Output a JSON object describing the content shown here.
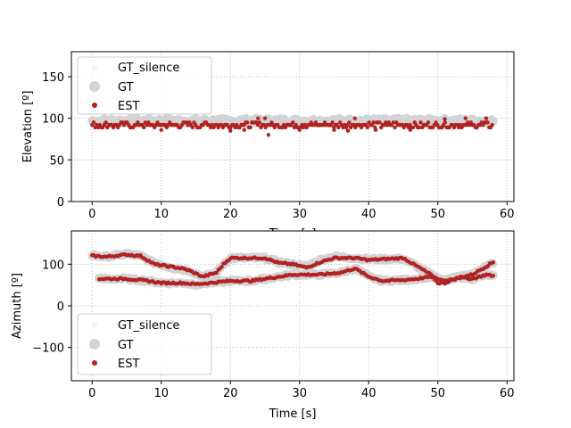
{
  "colors": {
    "gt_silence": "#f2f2f2",
    "gt": "#d3d3d3",
    "est": "#b22222",
    "grid": "#b0b0b0"
  },
  "chart_data": [
    {
      "type": "scatter",
      "xlabel": "Time [s]",
      "ylabel": "Elevation [º]",
      "xlim": [
        -3,
        61
      ],
      "ylim": [
        0,
        180
      ],
      "xticks": [
        "0",
        "10",
        "20",
        "30",
        "40",
        "50",
        "60"
      ],
      "yticks": [
        "0",
        "50",
        "100",
        "150"
      ],
      "grid": true,
      "legend_position": "upper-left",
      "series": [
        {
          "name": "GT_silence",
          "segments": []
        },
        {
          "name": "GT",
          "segments": [
            {
              "x_start": 0,
              "x_end": 58,
              "y": 97,
              "jitter": 3
            }
          ]
        },
        {
          "name": "EST",
          "segments": [
            {
              "x_start": 0,
              "x_end": 58,
              "y": 92,
              "jitter": 3
            }
          ],
          "points": [
            {
              "x": 10,
              "y": 86
            },
            {
              "x": 20,
              "y": 85
            },
            {
              "x": 22,
              "y": 86
            },
            {
              "x": 24,
              "y": 100
            },
            {
              "x": 25,
              "y": 100
            },
            {
              "x": 25.5,
              "y": 80
            },
            {
              "x": 30,
              "y": 86
            },
            {
              "x": 35,
              "y": 86
            },
            {
              "x": 37,
              "y": 85
            },
            {
              "x": 38,
              "y": 100
            },
            {
              "x": 41,
              "y": 86
            },
            {
              "x": 46,
              "y": 86
            },
            {
              "x": 51,
              "y": 99
            },
            {
              "x": 54,
              "y": 100
            },
            {
              "x": 57,
              "y": 100
            }
          ]
        }
      ]
    },
    {
      "type": "scatter",
      "xlabel": "Time [s]",
      "ylabel": "Azimuth [º]",
      "xlim": [
        -3,
        61
      ],
      "ylim": [
        -180,
        180
      ],
      "xticks": [
        "0",
        "10",
        "20",
        "30",
        "40",
        "50",
        "60"
      ],
      "yticks": [
        "−100",
        "0",
        "100"
      ],
      "grid": true,
      "legend_position": "lower-left",
      "series": [
        {
          "name": "GT_silence",
          "segments": []
        },
        {
          "name": "GT",
          "trajectories": [
            [
              [
                0,
                122
              ],
              [
                2,
                118
              ],
              [
                5,
                125
              ],
              [
                7,
                120
              ],
              [
                9,
                103
              ],
              [
                12,
                90
              ],
              [
                14,
                85
              ],
              [
                16,
                70
              ],
              [
                18,
                80
              ],
              [
                19,
                100
              ],
              [
                20,
                115
              ],
              [
                25,
                115
              ],
              [
                27,
                105
              ],
              [
                29,
                100
              ],
              [
                31,
                95
              ],
              [
                33,
                110
              ],
              [
                35,
                118
              ],
              [
                38,
                115
              ],
              [
                40,
                112
              ],
              [
                45,
                113
              ],
              [
                47,
                95
              ],
              [
                49,
                75
              ],
              [
                51,
                60
              ],
              [
                53,
                70
              ],
              [
                55,
                75
              ],
              [
                56,
                85
              ],
              [
                57,
                95
              ],
              [
                58,
                105
              ]
            ],
            [
              [
                1,
                65
              ],
              [
                5,
                65
              ],
              [
                8,
                60
              ],
              [
                10,
                55
              ],
              [
                13,
                55
              ],
              [
                15,
                52
              ],
              [
                17,
                55
              ],
              [
                20,
                60
              ],
              [
                23,
                60
              ],
              [
                25,
                65
              ],
              [
                27,
                70
              ],
              [
                29,
                75
              ],
              [
                33,
                75
              ],
              [
                36,
                80
              ],
              [
                38,
                90
              ],
              [
                40,
                70
              ],
              [
                42,
                60
              ],
              [
                45,
                62
              ],
              [
                47,
                65
              ],
              [
                49,
                70
              ],
              [
                51,
                60
              ],
              [
                53,
                70
              ],
              [
                55,
                65
              ],
              [
                57,
                75
              ],
              [
                58,
                72
              ]
            ]
          ]
        },
        {
          "name": "EST",
          "trajectories": [
            [
              [
                0,
                120
              ],
              [
                2,
                118
              ],
              [
                5,
                123
              ],
              [
                7,
                120
              ],
              [
                9,
                100
              ],
              [
                11,
                95
              ],
              [
                13,
                90
              ],
              [
                14,
                85
              ],
              [
                16,
                70
              ],
              [
                18,
                80
              ],
              [
                19,
                100
              ],
              [
                20,
                115
              ],
              [
                25,
                115
              ],
              [
                27,
                103
              ],
              [
                29,
                100
              ],
              [
                31,
                92
              ],
              [
                33,
                105
              ],
              [
                35,
                115
              ],
              [
                38,
                115
              ],
              [
                40,
                110
              ],
              [
                45,
                115
              ],
              [
                47,
                95
              ],
              [
                49,
                75
              ],
              [
                50,
                55
              ],
              [
                51,
                55
              ],
              [
                53,
                68
              ],
              [
                55,
                75
              ],
              [
                56,
                85
              ],
              [
                57,
                95
              ],
              [
                58,
                105
              ]
            ],
            [
              [
                1,
                65
              ],
              [
                5,
                65
              ],
              [
                8,
                60
              ],
              [
                10,
                55
              ],
              [
                13,
                55
              ],
              [
                15,
                52
              ],
              [
                17,
                55
              ],
              [
                20,
                60
              ],
              [
                23,
                60
              ],
              [
                25,
                65
              ],
              [
                27,
                70
              ],
              [
                29,
                75
              ],
              [
                33,
                75
              ],
              [
                36,
                80
              ],
              [
                38,
                90
              ],
              [
                40,
                70
              ],
              [
                42,
                60
              ],
              [
                45,
                62
              ],
              [
                47,
                65
              ],
              [
                49,
                70
              ],
              [
                51,
                60
              ],
              [
                53,
                68
              ],
              [
                55,
                65
              ],
              [
                57,
                75
              ],
              [
                58,
                72
              ]
            ]
          ]
        }
      ]
    }
  ]
}
